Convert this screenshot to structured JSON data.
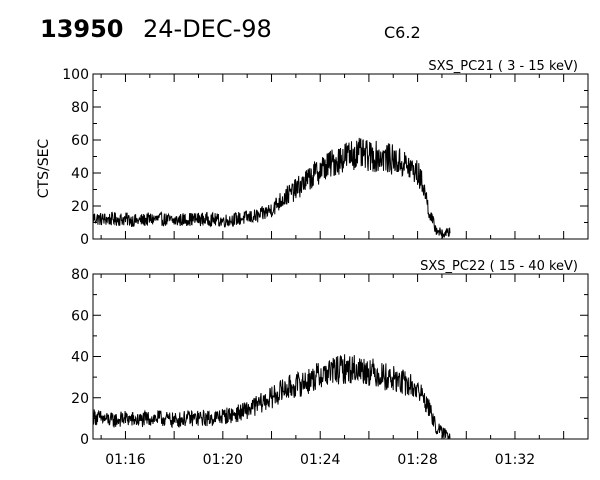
{
  "header": {
    "event_id": "13950",
    "date": "24-DEC-98",
    "flare_class": "C6.2"
  },
  "chart_data": [
    {
      "type": "line",
      "title": "SXS_PC21  (  3 - 15 keV)",
      "xlabel": "",
      "ylabel": "CTS/SEC",
      "xlim": [
        "01:14:40",
        "01:35:00"
      ],
      "ylim": [
        0,
        100
      ],
      "x_ticks": [
        "01:16",
        "01:20",
        "01:24",
        "01:28",
        "01:32"
      ],
      "y_ticks": [
        0,
        20,
        40,
        60,
        80,
        100
      ],
      "grid": false,
      "series": [
        {
          "x": [
            "01:14:40",
            "01:15:00",
            "01:15:30",
            "01:16:00",
            "01:16:30",
            "01:17:00",
            "01:17:30",
            "01:18:00",
            "01:18:30",
            "01:19:00",
            "01:19:30",
            "01:20:00",
            "01:20:30",
            "01:21:00",
            "01:21:30",
            "01:22:00",
            "01:22:30",
            "01:23:00",
            "01:23:30",
            "01:24:00",
            "01:24:30",
            "01:25:00",
            "01:25:30",
            "01:26:00",
            "01:26:30",
            "01:27:00",
            "01:27:30",
            "01:28:00",
            "01:28:15",
            "01:28:30",
            "01:28:45",
            "01:29:00",
            "01:29:20"
          ],
          "values": [
            13,
            12,
            12,
            12,
            11,
            12,
            12,
            11,
            12,
            12,
            12,
            11,
            12,
            13,
            14,
            18,
            25,
            30,
            36,
            42,
            46,
            50,
            52,
            50,
            50,
            48,
            45,
            40,
            32,
            15,
            6,
            3,
            4
          ]
        }
      ]
    },
    {
      "type": "line",
      "title": "SXS_PC22  ( 15 - 40 keV)",
      "xlabel": "",
      "ylabel": "",
      "xlim": [
        "01:14:40",
        "01:35:00"
      ],
      "ylim": [
        0,
        80
      ],
      "x_ticks": [
        "01:16",
        "01:20",
        "01:24",
        "01:28",
        "01:32"
      ],
      "y_ticks": [
        0,
        20,
        40,
        60,
        80
      ],
      "grid": false,
      "series": [
        {
          "x": [
            "01:14:40",
            "01:15:00",
            "01:15:30",
            "01:16:00",
            "01:16:30",
            "01:17:00",
            "01:17:30",
            "01:18:00",
            "01:18:30",
            "01:19:00",
            "01:19:30",
            "01:20:00",
            "01:20:30",
            "01:21:00",
            "01:21:30",
            "01:22:00",
            "01:22:30",
            "01:23:00",
            "01:23:30",
            "01:24:00",
            "01:24:30",
            "01:25:00",
            "01:25:30",
            "01:26:00",
            "01:26:30",
            "01:27:00",
            "01:27:30",
            "01:28:00",
            "01:28:15",
            "01:28:30",
            "01:28:45",
            "01:29:00",
            "01:29:20"
          ],
          "values": [
            11,
            10,
            9,
            10,
            9,
            10,
            10,
            9,
            10,
            10,
            10,
            11,
            12,
            14,
            17,
            20,
            24,
            26,
            28,
            31,
            33,
            34,
            34,
            33,
            31,
            29,
            27,
            24,
            20,
            14,
            6,
            3,
            2
          ]
        }
      ]
    }
  ]
}
